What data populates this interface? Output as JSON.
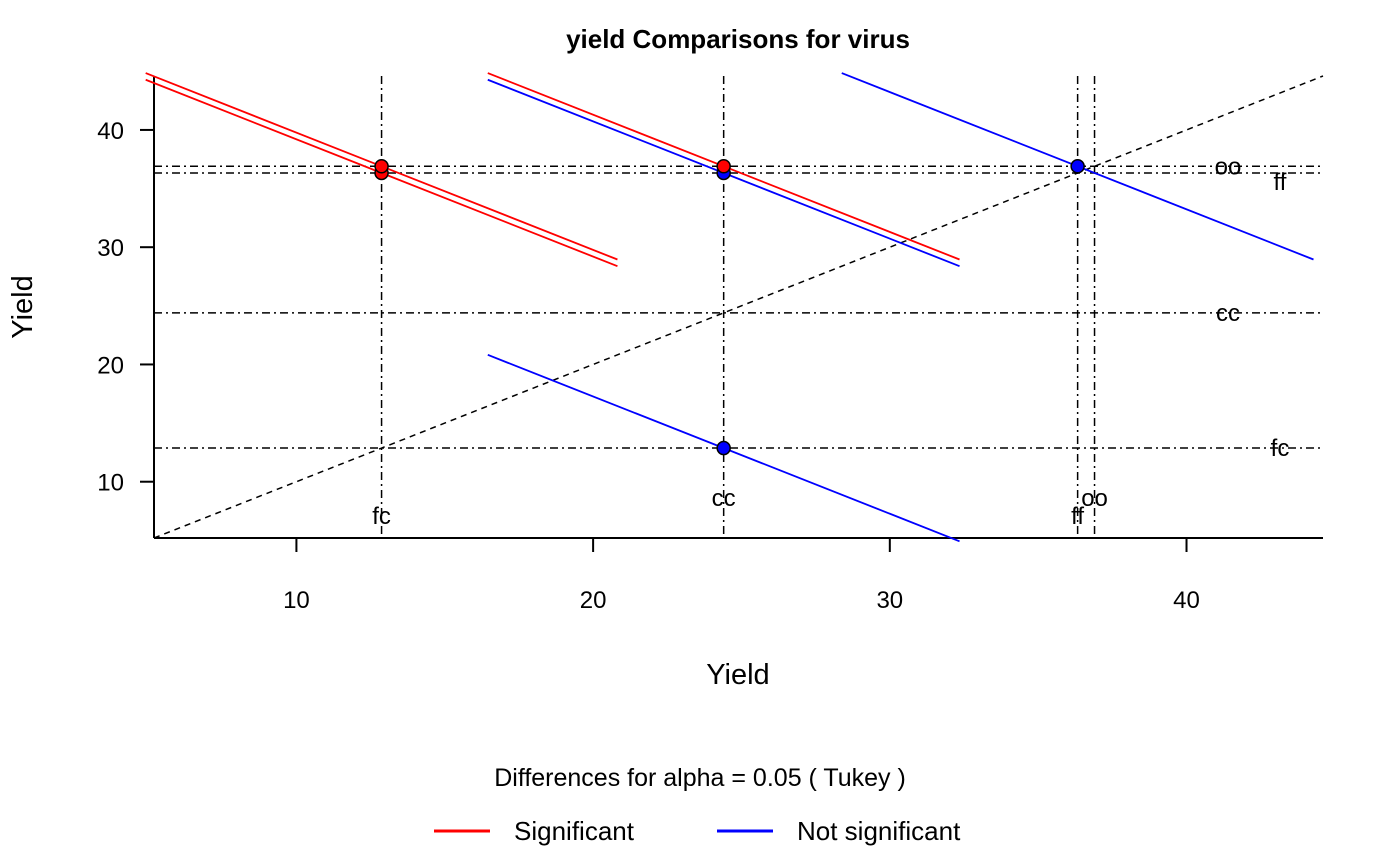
{
  "chart_data": {
    "type": "scatter",
    "title": "yield Comparisons for virus",
    "xlabel": "Yield",
    "ylabel": "Yield",
    "xlim": [
      5.2,
      44.6
    ],
    "ylim": [
      5.2,
      44.6
    ],
    "x_ticks": [
      "10",
      "20",
      "30",
      "40"
    ],
    "y_ticks": [
      "10",
      "20",
      "30",
      "40"
    ],
    "grid": false,
    "reference_line": "y = x",
    "means": [
      {
        "level": "fc",
        "value": 12.87
      },
      {
        "level": "cc",
        "value": 24.4
      },
      {
        "level": "ff",
        "value": 36.33
      },
      {
        "level": "oo",
        "value": 36.9
      }
    ],
    "level_labels": {
      "x_axis": [
        {
          "label": "fc",
          "value": 12.87
        },
        {
          "label": "cc",
          "value": 24.4
        },
        {
          "label": "ff",
          "value": 36.33
        },
        {
          "label": "oo",
          "value": 36.9
        }
      ],
      "right_side": [
        {
          "label": "oo",
          "value": 36.9
        },
        {
          "label": "ff",
          "value": 36.33
        },
        {
          "label": "cc",
          "value": 24.4
        },
        {
          "label": "fc",
          "value": 12.87
        }
      ]
    },
    "comparisons": [
      {
        "a": "fc",
        "b": "ff",
        "x": 12.87,
        "y": 36.33,
        "half_width": 7.95,
        "significant": true
      },
      {
        "a": "fc",
        "b": "oo",
        "x": 12.87,
        "y": 36.9,
        "half_width": 7.95,
        "significant": true
      },
      {
        "a": "cc",
        "b": "ff",
        "x": 24.4,
        "y": 36.33,
        "half_width": 7.95,
        "significant": false
      },
      {
        "a": "cc",
        "b": "oo",
        "x": 24.4,
        "y": 36.9,
        "half_width": 7.95,
        "significant": true
      },
      {
        "a": "fc",
        "b": "cc",
        "x": 24.4,
        "y": 12.87,
        "half_width": 7.95,
        "significant": false
      },
      {
        "a": "ff",
        "b": "oo",
        "x": 36.33,
        "y": 36.9,
        "half_width": 7.95,
        "significant": false
      }
    ],
    "legend": {
      "title": "Differences for alpha = 0.05 ( Tukey )",
      "placement": "bottom",
      "items": [
        {
          "label": "Significant",
          "color": "#ff0000"
        },
        {
          "label": "Not significant",
          "color": "#0000ff"
        }
      ]
    },
    "colors": {
      "significant": "#ff0000",
      "not_significant": "#0000ff"
    }
  }
}
